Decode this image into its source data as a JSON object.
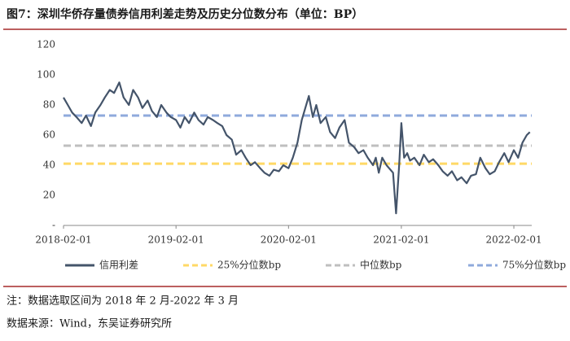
{
  "chart_data": {
    "type": "line",
    "title": "图7：深圳华侨存量债券信用利差走势及历史分位数分布（单位：BP）",
    "notes": [
      "注：数据选取区间为 2018 年 2 月-2022 年 3 月",
      "数据来源：Wind，东吴证券研究所"
    ],
    "x": [
      "2018-02-01",
      "2018-02-15",
      "2018-03-01",
      "2018-03-15",
      "2018-04-01",
      "2018-04-15",
      "2018-05-01",
      "2018-05-15",
      "2018-06-01",
      "2018-06-15",
      "2018-07-01",
      "2018-07-15",
      "2018-08-01",
      "2018-08-15",
      "2018-09-01",
      "2018-09-15",
      "2018-10-01",
      "2018-10-15",
      "2018-11-01",
      "2018-11-15",
      "2018-12-01",
      "2018-12-15",
      "2019-01-01",
      "2019-01-15",
      "2019-02-01",
      "2019-02-15",
      "2019-03-01",
      "2019-03-15",
      "2019-04-01",
      "2019-04-15",
      "2019-05-01",
      "2019-05-15",
      "2019-06-01",
      "2019-06-15",
      "2019-07-01",
      "2019-07-15",
      "2019-08-01",
      "2019-08-15",
      "2019-09-01",
      "2019-09-15",
      "2019-10-01",
      "2019-10-15",
      "2019-11-01",
      "2019-11-15",
      "2019-12-01",
      "2019-12-15",
      "2020-01-01",
      "2020-01-15",
      "2020-02-01",
      "2020-02-15",
      "2020-03-01",
      "2020-03-15",
      "2020-04-07",
      "2020-04-20",
      "2020-05-01",
      "2020-05-15",
      "2020-06-01",
      "2020-06-15",
      "2020-07-01",
      "2020-07-15",
      "2020-08-01",
      "2020-08-15",
      "2020-09-01",
      "2020-09-15",
      "2020-10-01",
      "2020-10-15",
      "2020-11-01",
      "2020-11-10",
      "2020-11-20",
      "2020-12-01",
      "2020-12-15",
      "2021-01-05",
      "2021-01-15",
      "2021-01-25",
      "2021-02-01",
      "2021-02-10",
      "2021-02-20",
      "2021-03-01",
      "2021-03-15",
      "2021-04-01",
      "2021-04-15",
      "2021-05-01",
      "2021-05-15",
      "2021-06-01",
      "2021-06-15",
      "2021-07-01",
      "2021-07-15",
      "2021-08-01",
      "2021-08-15",
      "2021-09-01",
      "2021-09-15",
      "2021-10-01",
      "2021-10-15",
      "2021-11-01",
      "2021-11-15",
      "2021-12-01",
      "2021-12-15",
      "2022-01-01",
      "2022-01-15",
      "2022-02-01",
      "2022-02-15",
      "2022-03-01",
      "2022-03-15",
      "2022-03-25"
    ],
    "series": [
      {
        "name": "信用利差",
        "color": "#44546a",
        "values": [
          85,
          80,
          75,
          72,
          68,
          73,
          66,
          75,
          80,
          85,
          90,
          88,
          95,
          85,
          80,
          90,
          85,
          78,
          83,
          76,
          72,
          80,
          75,
          72,
          70,
          65,
          72,
          68,
          75,
          70,
          67,
          72,
          70,
          68,
          66,
          60,
          57,
          47,
          50,
          45,
          40,
          42,
          38,
          35,
          33,
          37,
          36,
          40,
          38,
          45,
          55,
          70,
          86,
          72,
          80,
          68,
          72,
          62,
          58,
          65,
          70,
          55,
          52,
          48,
          50,
          45,
          40,
          45,
          35,
          45,
          40,
          35,
          8,
          40,
          68,
          45,
          48,
          43,
          45,
          40,
          47,
          42,
          44,
          40,
          36,
          33,
          36,
          30,
          32,
          28,
          33,
          34,
          45,
          38,
          34,
          36,
          42,
          48,
          42,
          50,
          45,
          55,
          60,
          62
        ]
      }
    ],
    "reference_lines": [
      {
        "name": "25%分位数bp",
        "value": 41,
        "color": "#ffd966"
      },
      {
        "name": "中位数bp",
        "value": 53,
        "color": "#bfbfbf"
      },
      {
        "name": "75%分位数bp",
        "value": 73,
        "color": "#8faadc"
      }
    ],
    "xlim": [
      "2018-02-01",
      "2022-03-31"
    ],
    "xticks": [
      "2018-02-01",
      "2019-02-01",
      "2020-02-01",
      "2021-02-01",
      "2022-02-01"
    ],
    "ylim": [
      0,
      120
    ],
    "yticks": [
      {
        "value": 0,
        "label": "-"
      },
      20,
      40,
      60,
      80,
      100,
      120
    ],
    "legend": "bottom"
  }
}
